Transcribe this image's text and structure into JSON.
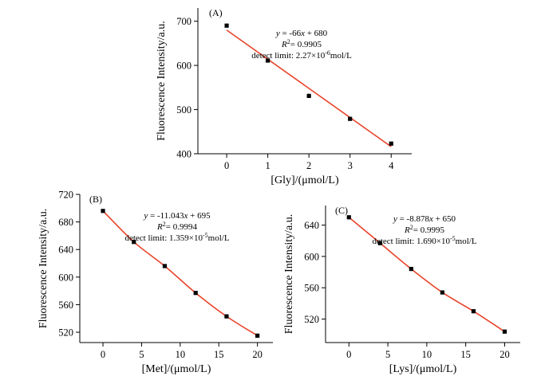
{
  "colors": {
    "fit_line": "#e8442a",
    "point": "#000000",
    "axis": "#000000"
  },
  "chart_data": [
    {
      "type": "scatter",
      "panel_label": "(A)",
      "xlabel": "[Gly]/(μmol/L)",
      "ylabel": "Fluorescence Intensity/a.u.",
      "xlim": [
        -0.7,
        4.5
      ],
      "ylim": [
        400,
        730
      ],
      "xticks": [
        0,
        1,
        2,
        3,
        4
      ],
      "yticks": [
        400,
        500,
        600,
        700
      ],
      "series": [
        {
          "x": [
            0,
            1,
            2,
            3,
            4
          ],
          "y": [
            690,
            611,
            531,
            479,
            423
          ]
        }
      ],
      "fit": {
        "type": "linear",
        "slope": -66,
        "intercept": 680,
        "x_range": [
          0,
          4
        ]
      },
      "annotations": {
        "equation": {
          "lhs": "y",
          "rhs": " = -66",
          "var": "x",
          "tail": " + 680"
        },
        "r2": {
          "sym": "R",
          "sup": "2",
          "val": "= 0.9905"
        },
        "limit": {
          "text": "detect limit: 2.27×10",
          "exp": "-6",
          "unit": "mol/L"
        }
      }
    },
    {
      "type": "scatter",
      "panel_label": "(B)",
      "xlabel": "[Met]/(μmol/L)",
      "ylabel": "Fluorescence Intensity/a.u.",
      "xlim": [
        -3,
        22
      ],
      "ylim": [
        505,
        720
      ],
      "xticks": [
        0,
        5,
        10,
        15,
        20
      ],
      "yticks": [
        520,
        560,
        600,
        640,
        680,
        720
      ],
      "series": [
        {
          "x": [
            0,
            4,
            8,
            12,
            16,
            20
          ],
          "y": [
            696,
            651,
            616,
            577,
            543,
            515
          ]
        }
      ],
      "fit": {
        "type": "curve",
        "x_range": [
          0,
          20
        ]
      },
      "annotations": {
        "equation": {
          "lhs": "y",
          "rhs": " = -11.043",
          "var": "x",
          "tail": " + 695"
        },
        "r2": {
          "sym": "R",
          "sup": "2",
          "val": "= 0.9994"
        },
        "limit": {
          "text": "detect limit: 1.359×10",
          "exp": "-5",
          "unit": "mol/L"
        }
      }
    },
    {
      "type": "scatter",
      "panel_label": "(C)",
      "xlabel": "[Lys]/(μmol/L)",
      "ylabel": "Fluorescence Intensity/a.u.",
      "xlim": [
        -3,
        22
      ],
      "ylim": [
        490,
        665
      ],
      "xticks": [
        0,
        5,
        10,
        15,
        20
      ],
      "yticks": [
        520,
        560,
        600,
        640
      ],
      "series": [
        {
          "x": [
            0,
            4,
            8,
            12,
            16,
            20
          ],
          "y": [
            650,
            617,
            584,
            554,
            530,
            504
          ]
        }
      ],
      "fit": {
        "type": "curve",
        "x_range": [
          0,
          20
        ]
      },
      "annotations": {
        "equation": {
          "lhs": "y",
          "rhs": " = -8.878",
          "var": "x",
          "tail": " + 650"
        },
        "r2": {
          "sym": "R",
          "sup": "2",
          "val": "= 0.9995"
        },
        "limit": {
          "text": "detect limit: 1.690×10",
          "exp": "-5",
          "unit": "mol/L"
        }
      }
    }
  ]
}
